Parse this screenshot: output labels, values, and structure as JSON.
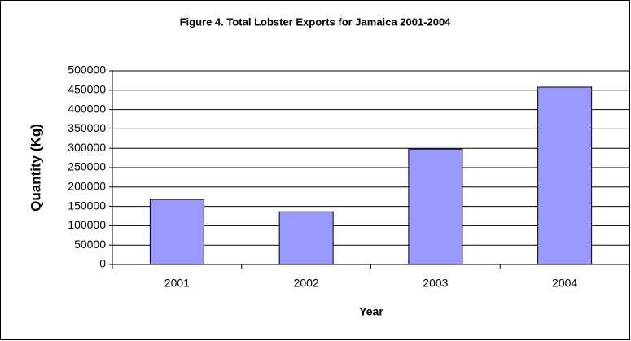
{
  "chart_data": {
    "type": "bar",
    "title": "Figure 4. Total Lobster Exports for Jamaica 2001-2004",
    "x_label": "Year",
    "y_label": "Quantity (Kg)",
    "categories": [
      "2001",
      "2002",
      "2003",
      "2004"
    ],
    "values": [
      168000,
      136000,
      298000,
      458000
    ],
    "color": "#9999ff",
    "ylim": [
      0,
      500000
    ],
    "yticks": [
      0,
      50000,
      100000,
      150000,
      200000,
      250000,
      300000,
      350000,
      400000,
      450000,
      500000
    ],
    "grid": true
  }
}
